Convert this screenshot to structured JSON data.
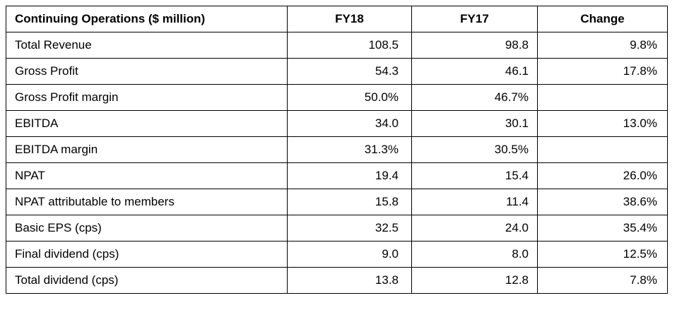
{
  "table": {
    "headers": [
      "Continuing Operations ($ million)",
      "FY18",
      "FY17",
      "Change"
    ],
    "rows": [
      [
        "Total Revenue",
        "108.5",
        "98.8",
        "9.8%"
      ],
      [
        "Gross Profit",
        "54.3",
        "46.1",
        "17.8%"
      ],
      [
        "Gross Profit margin",
        "50.0%",
        "46.7%",
        ""
      ],
      [
        "EBITDA",
        "34.0",
        "30.1",
        "13.0%"
      ],
      [
        "EBITDA margin",
        "31.3%",
        "30.5%",
        ""
      ],
      [
        "NPAT",
        "19.4",
        "15.4",
        "26.0%"
      ],
      [
        "NPAT attributable to members",
        "15.8",
        "11.4",
        "38.6%"
      ],
      [
        "Basic EPS (cps)",
        "32.5",
        "24.0",
        "35.4%"
      ],
      [
        "Final dividend (cps)",
        "9.0",
        "8.0",
        "12.5%"
      ],
      [
        "Total dividend (cps)",
        "13.8",
        "12.8",
        "7.8%"
      ]
    ]
  }
}
